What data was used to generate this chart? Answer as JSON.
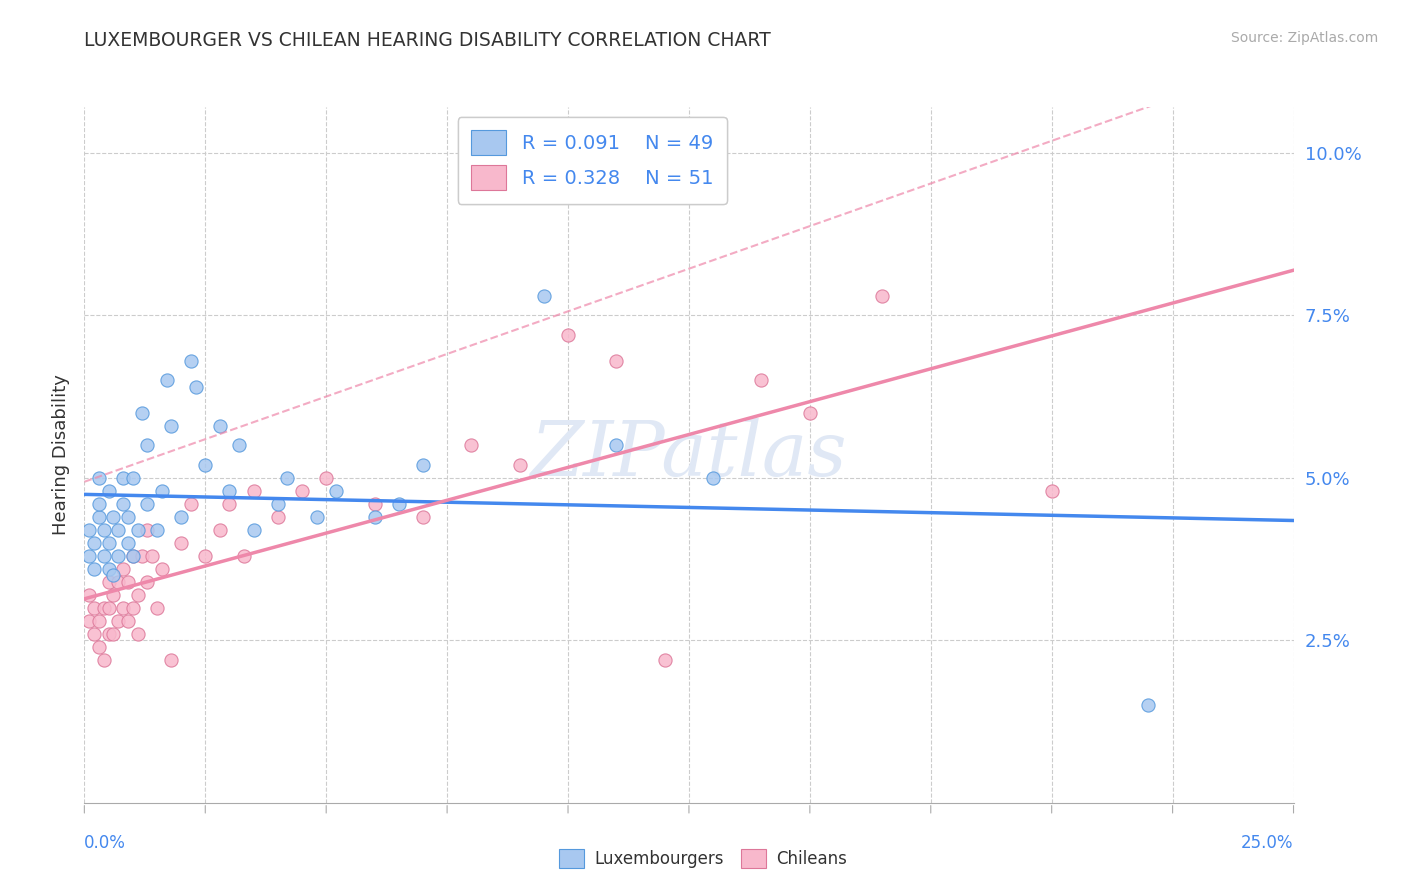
{
  "title": "LUXEMBOURGER VS CHILEAN HEARING DISABILITY CORRELATION CHART",
  "source": "Source: ZipAtlas.com",
  "ylabel": "Hearing Disability",
  "xlim": [
    0.0,
    0.25
  ],
  "ylim": [
    0.0,
    0.107
  ],
  "yticks": [
    0.025,
    0.05,
    0.075,
    0.1
  ],
  "ytick_labels": [
    "2.5%",
    "5.0%",
    "7.5%",
    "10.0%"
  ],
  "lux_color": "#a8c8f0",
  "lux_edge": "#5599dd",
  "chil_color": "#f8b8cc",
  "chil_edge": "#dd7799",
  "lux_line_color": "#4488ee",
  "chil_line_color": "#ee88aa",
  "lux_R": 0.091,
  "lux_N": 49,
  "chil_R": 0.328,
  "chil_N": 51,
  "watermark": "ZIPatlas",
  "lux_x": [
    0.001,
    0.001,
    0.002,
    0.002,
    0.003,
    0.003,
    0.003,
    0.004,
    0.004,
    0.005,
    0.005,
    0.005,
    0.006,
    0.006,
    0.007,
    0.007,
    0.008,
    0.008,
    0.009,
    0.009,
    0.01,
    0.01,
    0.011,
    0.012,
    0.013,
    0.013,
    0.015,
    0.016,
    0.017,
    0.018,
    0.02,
    0.022,
    0.023,
    0.025,
    0.028,
    0.03,
    0.032,
    0.035,
    0.04,
    0.042,
    0.048,
    0.052,
    0.06,
    0.065,
    0.07,
    0.095,
    0.11,
    0.13,
    0.22
  ],
  "lux_y": [
    0.038,
    0.042,
    0.036,
    0.04,
    0.044,
    0.046,
    0.05,
    0.038,
    0.042,
    0.036,
    0.04,
    0.048,
    0.035,
    0.044,
    0.038,
    0.042,
    0.046,
    0.05,
    0.04,
    0.044,
    0.038,
    0.05,
    0.042,
    0.06,
    0.046,
    0.055,
    0.042,
    0.048,
    0.065,
    0.058,
    0.044,
    0.068,
    0.064,
    0.052,
    0.058,
    0.048,
    0.055,
    0.042,
    0.046,
    0.05,
    0.044,
    0.048,
    0.044,
    0.046,
    0.052,
    0.078,
    0.055,
    0.05,
    0.015
  ],
  "chil_x": [
    0.001,
    0.001,
    0.002,
    0.002,
    0.003,
    0.003,
    0.004,
    0.004,
    0.005,
    0.005,
    0.005,
    0.006,
    0.006,
    0.007,
    0.007,
    0.008,
    0.008,
    0.009,
    0.009,
    0.01,
    0.01,
    0.011,
    0.011,
    0.012,
    0.013,
    0.013,
    0.014,
    0.015,
    0.016,
    0.018,
    0.02,
    0.022,
    0.025,
    0.028,
    0.03,
    0.033,
    0.035,
    0.04,
    0.045,
    0.05,
    0.06,
    0.07,
    0.08,
    0.09,
    0.1,
    0.11,
    0.12,
    0.14,
    0.15,
    0.165,
    0.2
  ],
  "chil_y": [
    0.028,
    0.032,
    0.026,
    0.03,
    0.024,
    0.028,
    0.022,
    0.03,
    0.026,
    0.03,
    0.034,
    0.026,
    0.032,
    0.028,
    0.034,
    0.03,
    0.036,
    0.028,
    0.034,
    0.03,
    0.038,
    0.026,
    0.032,
    0.038,
    0.034,
    0.042,
    0.038,
    0.03,
    0.036,
    0.022,
    0.04,
    0.046,
    0.038,
    0.042,
    0.046,
    0.038,
    0.048,
    0.044,
    0.048,
    0.05,
    0.046,
    0.044,
    0.055,
    0.052,
    0.072,
    0.068,
    0.022,
    0.065,
    0.06,
    0.078,
    0.048
  ],
  "background_color": "#ffffff",
  "grid_color": "#cccccc"
}
